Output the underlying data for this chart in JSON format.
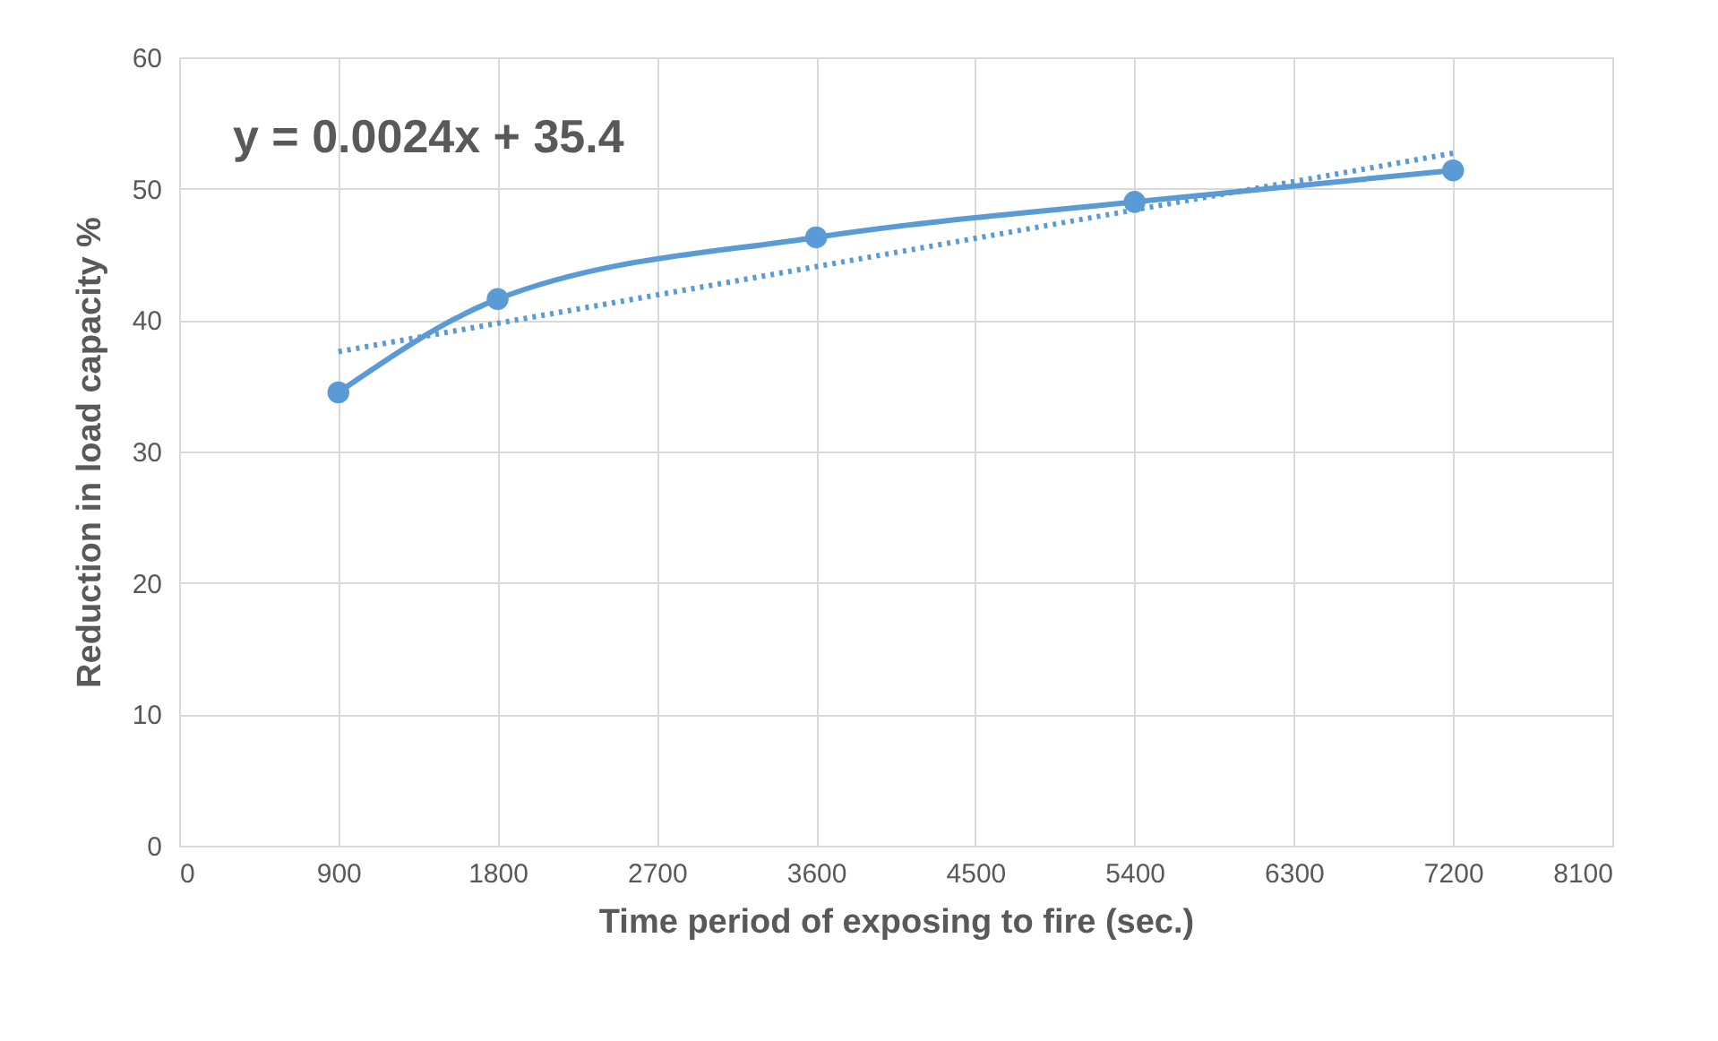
{
  "chart_data": {
    "type": "line",
    "xlabel": "Time period of exposing to fire (sec.)",
    "ylabel": "Reduction in load capacity %",
    "x": [
      900,
      1800,
      3600,
      5400,
      7200
    ],
    "series": [
      {
        "color": "#5b9bd5",
        "values": [
          34.5,
          41.6,
          46.3,
          49.0,
          51.4
        ],
        "marker": "circle",
        "line_style": "solid"
      },
      {
        "type": "line",
        "color": "#5b9bd5",
        "x": [
          900,
          7200
        ],
        "values": [
          37.6,
          52.7
        ],
        "marker": "none",
        "line_style": "dotted"
      }
    ],
    "annotations": [
      "y = 0.0024x + 35.4"
    ],
    "xlim": [
      0,
      8100
    ],
    "xticks": [
      0,
      900,
      1800,
      2700,
      3600,
      4500,
      5400,
      6300,
      7200,
      8100
    ],
    "ylim": [
      0,
      60
    ],
    "yticks": [
      0,
      10,
      20,
      30,
      40,
      50,
      60
    ],
    "grid": true
  }
}
